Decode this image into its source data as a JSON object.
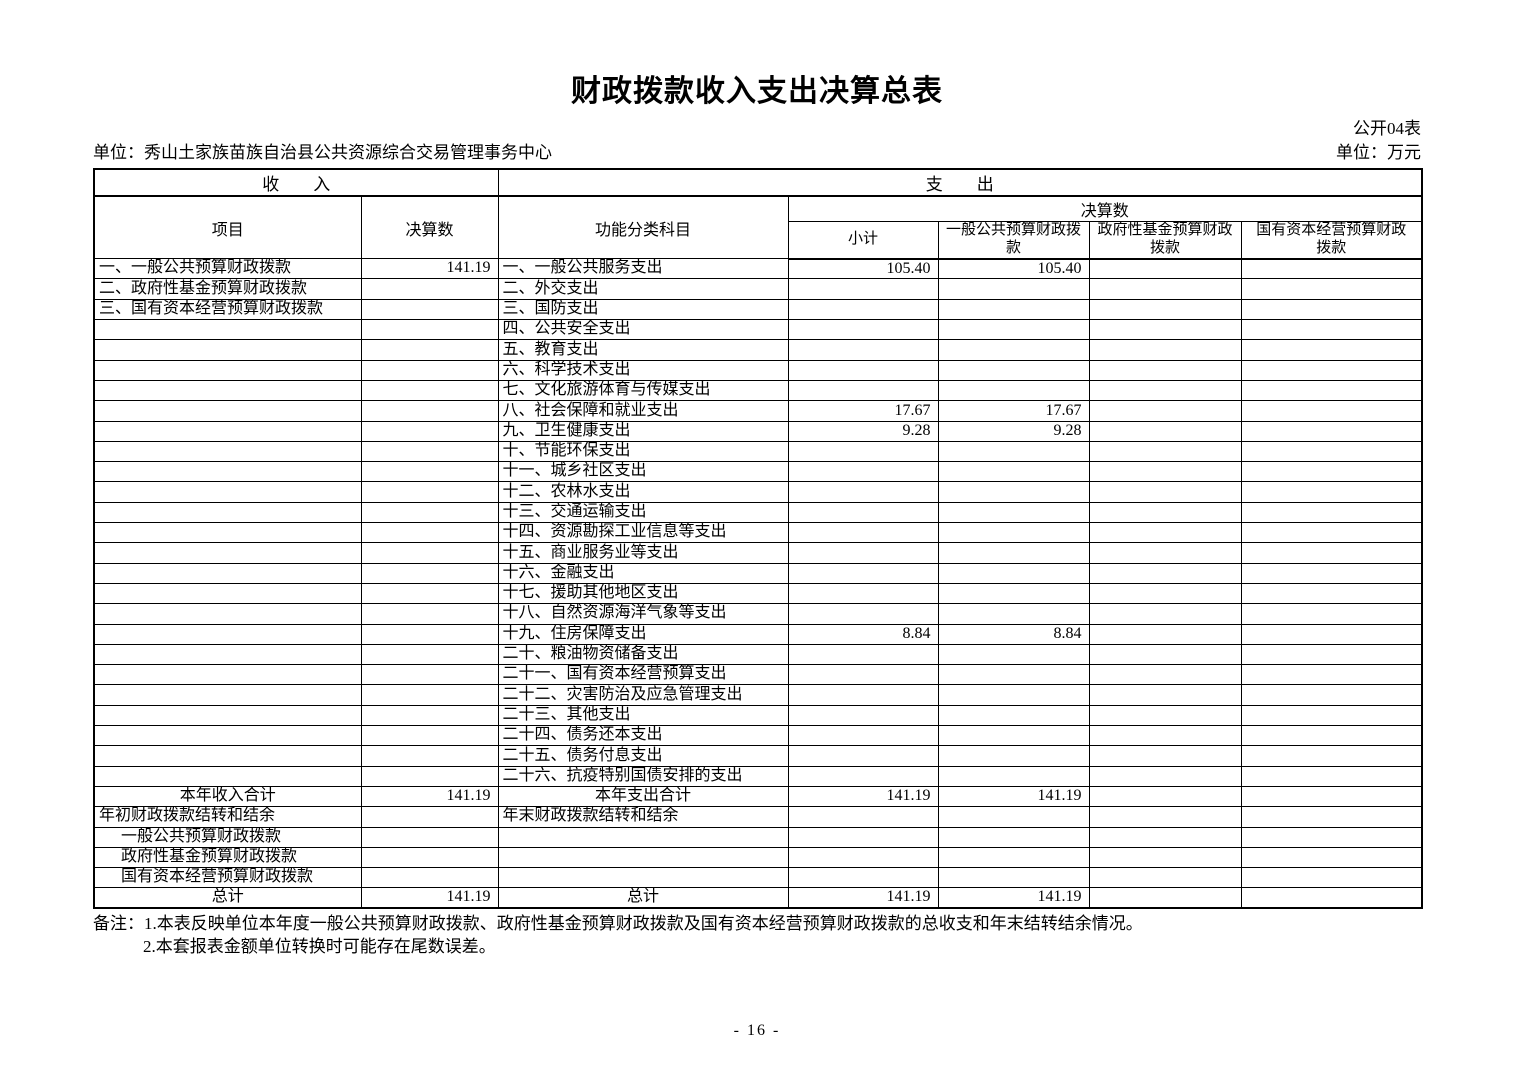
{
  "page": {
    "title": "财政拨款收入支出决算总表",
    "table_code": "公开04表",
    "unit_label": "单位：秀山土家族苗族自治县公共资源综合交易管理事务中心",
    "currency_label": "单位：万元",
    "page_number": "- 16 -"
  },
  "table": {
    "income_section": "收　　入",
    "expense_section": "支　　出",
    "columns": {
      "item": "项目",
      "income_final": "决算数",
      "functional_subject": "功能分类科目",
      "expense_final": "决算数",
      "subtotal": "小计",
      "general_public_budget": "一般公共预算财政拨\n款",
      "government_fund_budget": "政府性基金预算财政\n拨款",
      "state_capital_budget": "国有资本经营预算财政\n拨款"
    },
    "rows": [
      {
        "income_item": "一、一般公共预算财政拨款",
        "income_style": "",
        "income_amount": "141.19",
        "expense_item": "一、一般公共服务支出",
        "expense_style": "",
        "subtotal": "105.40",
        "general": "105.40",
        "fund": "",
        "capital": ""
      },
      {
        "income_item": "二、政府性基金预算财政拨款",
        "income_style": "",
        "income_amount": "",
        "expense_item": "二、外交支出",
        "expense_style": "",
        "subtotal": "",
        "general": "",
        "fund": "",
        "capital": ""
      },
      {
        "income_item": "三、国有资本经营预算财政拨款",
        "income_style": "",
        "income_amount": "",
        "expense_item": "三、国防支出",
        "expense_style": "",
        "subtotal": "",
        "general": "",
        "fund": "",
        "capital": ""
      },
      {
        "income_item": "",
        "income_style": "",
        "income_amount": "",
        "expense_item": "四、公共安全支出",
        "expense_style": "",
        "subtotal": "",
        "general": "",
        "fund": "",
        "capital": ""
      },
      {
        "income_item": "",
        "income_style": "",
        "income_amount": "",
        "expense_item": "五、教育支出",
        "expense_style": "",
        "subtotal": "",
        "general": "",
        "fund": "",
        "capital": ""
      },
      {
        "income_item": "",
        "income_style": "",
        "income_amount": "",
        "expense_item": "六、科学技术支出",
        "expense_style": "",
        "subtotal": "",
        "general": "",
        "fund": "",
        "capital": ""
      },
      {
        "income_item": "",
        "income_style": "",
        "income_amount": "",
        "expense_item": "七、文化旅游体育与传媒支出",
        "expense_style": "",
        "subtotal": "",
        "general": "",
        "fund": "",
        "capital": ""
      },
      {
        "income_item": "",
        "income_style": "",
        "income_amount": "",
        "expense_item": "八、社会保障和就业支出",
        "expense_style": "",
        "subtotal": "17.67",
        "general": "17.67",
        "fund": "",
        "capital": ""
      },
      {
        "income_item": "",
        "income_style": "",
        "income_amount": "",
        "expense_item": "九、卫生健康支出",
        "expense_style": "",
        "subtotal": "9.28",
        "general": "9.28",
        "fund": "",
        "capital": ""
      },
      {
        "income_item": "",
        "income_style": "",
        "income_amount": "",
        "expense_item": "十、节能环保支出",
        "expense_style": "",
        "subtotal": "",
        "general": "",
        "fund": "",
        "capital": ""
      },
      {
        "income_item": "",
        "income_style": "",
        "income_amount": "",
        "expense_item": "十一、城乡社区支出",
        "expense_style": "",
        "subtotal": "",
        "general": "",
        "fund": "",
        "capital": ""
      },
      {
        "income_item": "",
        "income_style": "",
        "income_amount": "",
        "expense_item": "十二、农林水支出",
        "expense_style": "",
        "subtotal": "",
        "general": "",
        "fund": "",
        "capital": ""
      },
      {
        "income_item": "",
        "income_style": "",
        "income_amount": "",
        "expense_item": "十三、交通运输支出",
        "expense_style": "",
        "subtotal": "",
        "general": "",
        "fund": "",
        "capital": ""
      },
      {
        "income_item": "",
        "income_style": "",
        "income_amount": "",
        "expense_item": "十四、资源勘探工业信息等支出",
        "expense_style": "",
        "subtotal": "",
        "general": "",
        "fund": "",
        "capital": ""
      },
      {
        "income_item": "",
        "income_style": "",
        "income_amount": "",
        "expense_item": "十五、商业服务业等支出",
        "expense_style": "",
        "subtotal": "",
        "general": "",
        "fund": "",
        "capital": ""
      },
      {
        "income_item": "",
        "income_style": "",
        "income_amount": "",
        "expense_item": "十六、金融支出",
        "expense_style": "",
        "subtotal": "",
        "general": "",
        "fund": "",
        "capital": ""
      },
      {
        "income_item": "",
        "income_style": "",
        "income_amount": "",
        "expense_item": "十七、援助其他地区支出",
        "expense_style": "",
        "subtotal": "",
        "general": "",
        "fund": "",
        "capital": ""
      },
      {
        "income_item": "",
        "income_style": "",
        "income_amount": "",
        "expense_item": "十八、自然资源海洋气象等支出",
        "expense_style": "",
        "subtotal": "",
        "general": "",
        "fund": "",
        "capital": ""
      },
      {
        "income_item": "",
        "income_style": "",
        "income_amount": "",
        "expense_item": "十九、住房保障支出",
        "expense_style": "",
        "subtotal": "8.84",
        "general": "8.84",
        "fund": "",
        "capital": ""
      },
      {
        "income_item": "",
        "income_style": "",
        "income_amount": "",
        "expense_item": "二十、粮油物资储备支出",
        "expense_style": "",
        "subtotal": "",
        "general": "",
        "fund": "",
        "capital": ""
      },
      {
        "income_item": "",
        "income_style": "",
        "income_amount": "",
        "expense_item": "二十一、国有资本经营预算支出",
        "expense_style": "",
        "subtotal": "",
        "general": "",
        "fund": "",
        "capital": ""
      },
      {
        "income_item": "",
        "income_style": "",
        "income_amount": "",
        "expense_item": "二十二、灾害防治及应急管理支出",
        "expense_style": "",
        "subtotal": "",
        "general": "",
        "fund": "",
        "capital": ""
      },
      {
        "income_item": "",
        "income_style": "",
        "income_amount": "",
        "expense_item": "二十三、其他支出",
        "expense_style": "",
        "subtotal": "",
        "general": "",
        "fund": "",
        "capital": ""
      },
      {
        "income_item": "",
        "income_style": "",
        "income_amount": "",
        "expense_item": "二十四、债务还本支出",
        "expense_style": "",
        "subtotal": "",
        "general": "",
        "fund": "",
        "capital": ""
      },
      {
        "income_item": "",
        "income_style": "",
        "income_amount": "",
        "expense_item": "二十五、债务付息支出",
        "expense_style": "",
        "subtotal": "",
        "general": "",
        "fund": "",
        "capital": ""
      },
      {
        "income_item": "",
        "income_style": "",
        "income_amount": "",
        "expense_item": "二十六、抗疫特别国债安排的支出",
        "expense_style": "",
        "subtotal": "",
        "general": "",
        "fund": "",
        "capital": ""
      },
      {
        "income_item": "本年收入合计",
        "income_style": "center",
        "income_amount": "141.19",
        "expense_item": "本年支出合计",
        "expense_style": "center",
        "subtotal": "141.19",
        "general": "141.19",
        "fund": "",
        "capital": ""
      },
      {
        "income_item": "年初财政拨款结转和结余",
        "income_style": "",
        "income_amount": "",
        "expense_item": "年末财政拨款结转和结余",
        "expense_style": "",
        "subtotal": "",
        "general": "",
        "fund": "",
        "capital": ""
      },
      {
        "income_item": "一般公共预算财政拨款",
        "income_style": "indent",
        "income_amount": "",
        "expense_item": "",
        "expense_style": "",
        "subtotal": "",
        "general": "",
        "fund": "",
        "capital": ""
      },
      {
        "income_item": "政府性基金预算财政拨款",
        "income_style": "indent",
        "income_amount": "",
        "expense_item": "",
        "expense_style": "",
        "subtotal": "",
        "general": "",
        "fund": "",
        "capital": ""
      },
      {
        "income_item": "国有资本经营预算财政拨款",
        "income_style": "indent",
        "income_amount": "",
        "expense_item": "",
        "expense_style": "",
        "subtotal": "",
        "general": "",
        "fund": "",
        "capital": ""
      },
      {
        "income_item": "总计",
        "income_style": "center",
        "income_amount": "141.19",
        "expense_item": "总计",
        "expense_style": "center",
        "subtotal": "141.19",
        "general": "141.19",
        "fund": "",
        "capital": ""
      }
    ]
  },
  "notes": {
    "line1": "备注：1.本表反映单位本年度一般公共预算财政拨款、政府性基金预算财政拨款及国有资本经营预算财政拨款的总收支和年末结转结余情况。",
    "line2": "2.本套报表金额单位转换时可能存在尾数误差。"
  }
}
